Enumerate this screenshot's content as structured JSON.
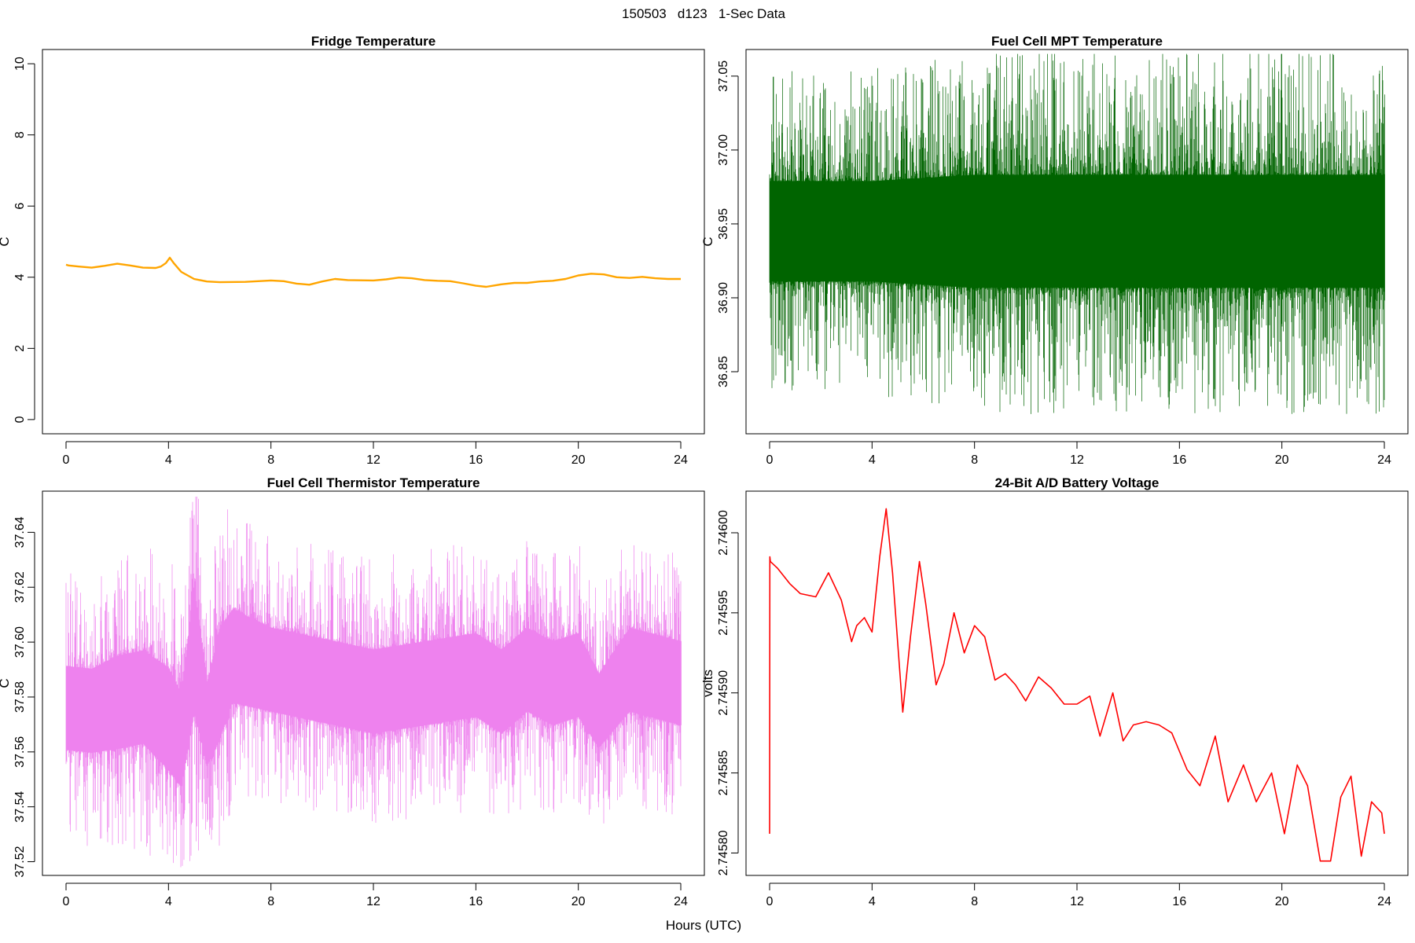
{
  "page_title": "150503   d123   1-Sec Data",
  "x_axis_label": "Hours (UTC)",
  "chart_data": [
    {
      "type": "line",
      "title": "Fridge Temperature",
      "ylabel": "C",
      "xlabel": "",
      "color": "#FFA500",
      "xlim": [
        0,
        24
      ],
      "ylim": [
        -0.4,
        10.4
      ],
      "x_ticks": [
        0,
        4,
        8,
        12,
        16,
        20,
        24
      ],
      "y_ticks": [
        0,
        2,
        4,
        6,
        8,
        10
      ],
      "y_tick_labels": [
        "0",
        "2",
        "4",
        "6",
        "8",
        "10"
      ],
      "render": "line",
      "series": [
        {
          "name": "Fridge Temperature",
          "x": [
            0,
            0.1,
            0.5,
            1,
            1.5,
            2,
            2.5,
            3,
            3.5,
            3.7,
            3.9,
            4.05,
            4.2,
            4.5,
            5,
            5.5,
            6,
            7,
            8,
            8.5,
            9,
            9.5,
            10,
            10.5,
            11,
            12,
            12.5,
            13,
            13.5,
            14,
            14.5,
            15,
            15.5,
            16,
            16.4,
            17,
            17.5,
            18,
            18.5,
            19,
            19.5,
            20,
            20.5,
            21,
            21.5,
            22,
            22.5,
            23,
            23.5,
            24
          ],
          "y": [
            4.35,
            4.33,
            4.3,
            4.27,
            4.32,
            4.38,
            4.33,
            4.27,
            4.26,
            4.3,
            4.4,
            4.55,
            4.4,
            4.15,
            3.95,
            3.88,
            3.86,
            3.87,
            3.91,
            3.89,
            3.82,
            3.79,
            3.88,
            3.95,
            3.92,
            3.91,
            3.94,
            3.99,
            3.97,
            3.92,
            3.9,
            3.89,
            3.83,
            3.76,
            3.73,
            3.8,
            3.84,
            3.84,
            3.88,
            3.9,
            3.95,
            4.05,
            4.1,
            4.08,
            4.0,
            3.98,
            4.01,
            3.97,
            3.95,
            3.95
          ]
        }
      ]
    },
    {
      "type": "line",
      "title": "Fuel Cell MPT Temperature",
      "ylabel": "C",
      "xlabel": "",
      "color": "#006400",
      "xlim": [
        0,
        24
      ],
      "ylim": [
        36.808,
        37.068
      ],
      "x_ticks": [
        0,
        4,
        8,
        12,
        16,
        20,
        24
      ],
      "y_ticks": [
        36.85,
        36.9,
        36.95,
        37.0,
        37.05
      ],
      "y_tick_labels": [
        "36.85",
        "36.90",
        "36.95",
        "37.00",
        "37.05"
      ],
      "render": "noise",
      "series": [
        {
          "name": "Fuel Cell MPT Temperature",
          "x": [
            0,
            4,
            8,
            12,
            16,
            20,
            24
          ],
          "center": [
            36.945,
            36.945,
            36.945,
            36.945,
            36.945,
            36.945,
            36.945
          ],
          "amplitude": [
            0.04,
            0.04,
            0.045,
            0.045,
            0.045,
            0.045,
            0.045
          ],
          "y_min": 36.815,
          "y_max": 37.065
        }
      ]
    },
    {
      "type": "line",
      "title": "Fuel Cell Thermistor Temperature",
      "ylabel": "C",
      "xlabel": "",
      "color": "#EE82EE",
      "xlim": [
        0,
        24
      ],
      "ylim": [
        37.515,
        37.655
      ],
      "x_ticks": [
        0,
        4,
        8,
        12,
        16,
        20,
        24
      ],
      "y_ticks": [
        37.52,
        37.54,
        37.56,
        37.58,
        37.6,
        37.62,
        37.64
      ],
      "y_tick_labels": [
        "37.52",
        "37.54",
        "37.56",
        "37.58",
        "37.60",
        "37.62",
        "37.64"
      ],
      "render": "noise",
      "series": [
        {
          "name": "Fuel Cell Thermistor Temperature",
          "x": [
            0,
            1,
            2,
            3,
            4,
            4.5,
            5,
            5.5,
            6,
            6.5,
            8,
            10,
            12,
            14,
            16,
            17,
            18,
            19,
            20,
            20.8,
            22,
            24
          ],
          "center": [
            37.576,
            37.575,
            37.578,
            37.58,
            37.572,
            37.564,
            37.598,
            37.57,
            37.585,
            37.595,
            37.59,
            37.586,
            37.582,
            37.585,
            37.588,
            37.582,
            37.59,
            37.585,
            37.588,
            37.575,
            37.59,
            37.585
          ],
          "amplitude": [
            0.018,
            0.018,
            0.02,
            0.02,
            0.022,
            0.02,
            0.028,
            0.018,
            0.024,
            0.02,
            0.018,
            0.018,
            0.018,
            0.018,
            0.018,
            0.018,
            0.018,
            0.018,
            0.018,
            0.016,
            0.018,
            0.018
          ],
          "y_min": 37.518,
          "y_max": 37.653
        }
      ]
    },
    {
      "type": "line",
      "title": "24-Bit A/D Battery Voltage",
      "ylabel": "volts",
      "xlabel": "",
      "color": "#FF0000",
      "xlim": [
        0,
        24
      ],
      "ylim": [
        2.745786,
        2.746026
      ],
      "x_ticks": [
        0,
        4,
        8,
        12,
        16,
        20,
        24
      ],
      "y_ticks": [
        2.7458,
        2.74585,
        2.7459,
        2.74595,
        2.746
      ],
      "y_tick_labels": [
        "2.74580",
        "2.74585",
        "2.74590",
        "2.74595",
        "2.74600"
      ],
      "render": "line",
      "series": [
        {
          "name": "24-Bit A/D Battery Voltage",
          "x": [
            0,
            0.01,
            0.03,
            0.3,
            0.8,
            1.2,
            1.8,
            2.3,
            2.8,
            3.2,
            3.4,
            3.7,
            4.0,
            4.3,
            4.55,
            4.8,
            5.2,
            5.5,
            5.85,
            6.1,
            6.5,
            6.8,
            7.2,
            7.6,
            8.0,
            8.4,
            8.8,
            9.2,
            9.6,
            10.0,
            10.5,
            11.0,
            11.5,
            12.0,
            12.5,
            12.9,
            13.4,
            13.8,
            14.2,
            14.7,
            15.2,
            15.7,
            16.3,
            16.8,
            17.4,
            17.9,
            18.5,
            19.0,
            19.6,
            20.1,
            20.6,
            21.0,
            21.5,
            21.9,
            22.3,
            22.7,
            23.1,
            23.5,
            23.9,
            24.0
          ],
          "y": [
            2.745812,
            2.745985,
            2.745982,
            2.745978,
            2.745968,
            2.745962,
            2.74596,
            2.745975,
            2.745958,
            2.745932,
            2.745942,
            2.745947,
            2.745938,
            2.745985,
            2.746015,
            2.745975,
            2.745888,
            2.745935,
            2.745982,
            2.745955,
            2.745905,
            2.745918,
            2.74595,
            2.745925,
            2.745942,
            2.745935,
            2.745908,
            2.745912,
            2.745905,
            2.745895,
            2.74591,
            2.745903,
            2.745893,
            2.745893,
            2.745898,
            2.745873,
            2.7459,
            2.74587,
            2.74588,
            2.745882,
            2.74588,
            2.745875,
            2.745852,
            2.745842,
            2.745873,
            2.745832,
            2.745855,
            2.745832,
            2.74585,
            2.745812,
            2.745855,
            2.745842,
            2.745795,
            2.745795,
            2.745835,
            2.745848,
            2.745798,
            2.745832,
            2.745825,
            2.745812
          ]
        }
      ]
    }
  ]
}
